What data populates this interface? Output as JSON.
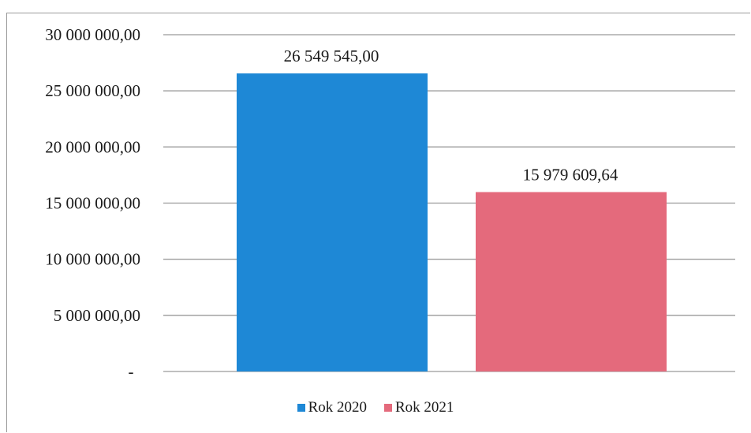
{
  "chart_data": {
    "type": "bar",
    "categories": [
      "Rok 2020",
      "Rok 2021"
    ],
    "values": [
      26549545.0,
      15979609.64
    ],
    "data_labels": [
      "26 549 545,00",
      "15 979 609,64"
    ],
    "colors": [
      "#1e88d6",
      "#e46a7c"
    ],
    "ylim": [
      0,
      30000000
    ],
    "yticks": [
      0,
      5000000,
      10000000,
      15000000,
      20000000,
      25000000,
      30000000
    ],
    "ytick_labels": [
      "-",
      "5 000 000,00",
      "10 000 000,00",
      "15 000 000,00",
      "20 000 000,00",
      "25 000 000,00",
      "30 000 000,00"
    ],
    "grid": true,
    "legend": {
      "position": "bottom",
      "entries": [
        "Rok 2020",
        "Rok 2021"
      ]
    }
  }
}
